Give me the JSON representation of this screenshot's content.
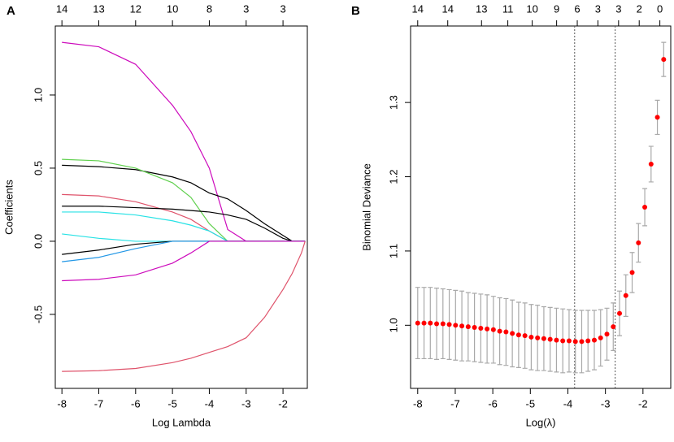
{
  "chart_data": [
    {
      "type": "line",
      "panel": "A",
      "xlabel": "Log Lambda",
      "ylabel": "Coefficients",
      "xlim": [
        -8.18,
        -1.34
      ],
      "ylim": [
        -1.006,
        1.472
      ],
      "xticks": [
        -8,
        -7,
        -6,
        -5,
        -4,
        -3,
        -2
      ],
      "yticks": [
        -0.5,
        {
          "value": 0,
          "label": "0.0"
        },
        0.5,
        {
          "value": 1,
          "label": "1.0"
        }
      ],
      "top_ticks": [
        -8,
        -7,
        -6,
        -5,
        -4,
        -3,
        -2
      ],
      "top_labels": [
        14,
        13,
        12,
        10,
        8,
        3,
        3
      ],
      "x": [
        -8,
        -7,
        -6,
        -5,
        -4.5,
        -4,
        -3.5,
        -3,
        -2.5,
        -2,
        -1.75,
        -1.5,
        -1.4
      ],
      "series": [
        {
          "color": "#CD0BBC",
          "values": [
            1.36,
            1.33,
            1.21,
            0.93,
            0.75,
            0.5,
            0.08,
            0,
            0,
            0,
            0,
            0,
            0
          ]
        },
        {
          "color": "#000000",
          "values": [
            0.52,
            0.51,
            0.49,
            0.44,
            0.4,
            0.33,
            0.29,
            0.21,
            0.12,
            0.04,
            0,
            0,
            0
          ]
        },
        {
          "color": "#61D04F",
          "values": [
            0.56,
            0.55,
            0.5,
            0.4,
            0.3,
            0.12,
            0,
            0,
            0,
            0,
            0,
            0,
            0
          ]
        },
        {
          "color": "#DF536B",
          "values": [
            0.32,
            0.31,
            0.27,
            0.2,
            0.15,
            0.07,
            0,
            0,
            0,
            0,
            0,
            0,
            0
          ]
        },
        {
          "color": "#000000",
          "values": [
            0.24,
            0.24,
            0.23,
            0.22,
            0.21,
            0.2,
            0.18,
            0.15,
            0.09,
            0.02,
            0,
            0,
            0
          ]
        },
        {
          "color": "#28E2E5",
          "values": [
            0.2,
            0.2,
            0.18,
            0.14,
            0.11,
            0.07,
            0,
            0,
            0,
            0,
            0,
            0,
            0
          ]
        },
        {
          "color": "#28E2E5",
          "values": [
            0.05,
            0.02,
            0,
            0,
            0,
            0,
            0,
            0,
            0,
            0,
            0,
            0,
            0
          ]
        },
        {
          "color": "#000000",
          "values": [
            -0.09,
            -0.06,
            -0.02,
            0,
            0,
            0,
            0,
            0,
            0,
            0,
            0,
            0,
            0
          ]
        },
        {
          "color": "#2297E6",
          "values": [
            -0.14,
            -0.11,
            -0.05,
            0,
            0,
            0,
            0,
            0,
            0,
            0,
            0,
            0,
            0
          ]
        },
        {
          "color": "#CD0BBC",
          "values": [
            -0.27,
            -0.26,
            -0.23,
            -0.15,
            -0.08,
            0,
            0,
            0,
            0,
            0,
            0,
            0,
            0
          ]
        },
        {
          "color": "#DF536B",
          "values": [
            -0.89,
            -0.885,
            -0.87,
            -0.83,
            -0.8,
            -0.76,
            -0.72,
            -0.66,
            -0.52,
            -0.33,
            -0.22,
            -0.08,
            0
          ]
        }
      ]
    },
    {
      "type": "errorbar",
      "panel": "B",
      "xlabel": "Log(λ)",
      "ylabel": "Binomial Deviance",
      "xlim": [
        -8.19,
        -1.26
      ],
      "ylim": [
        0.915,
        1.403
      ],
      "xticks": [
        -8,
        -7,
        -6,
        -5,
        -4,
        -3,
        -2
      ],
      "yticks": [
        {
          "value": 1,
          "label": "1.0"
        },
        1.1,
        1.2,
        1.3
      ],
      "top_ticks": [
        -8,
        -7.2,
        -6.3,
        -5.6,
        -4.95,
        -4.3,
        -3.75,
        -3.2,
        -2.65,
        -2.1,
        -1.55
      ],
      "top_labels": [
        14,
        14,
        13,
        11,
        10,
        9,
        6,
        3,
        3,
        2,
        0
      ],
      "vlines": [
        -3.82,
        -2.74
      ],
      "color": "#FF0000",
      "error_color": "#A9A9A9",
      "x": [
        -8,
        -7.832,
        -7.664,
        -7.496,
        -7.328,
        -7.16,
        -6.992,
        -6.824,
        -6.656,
        -6.488,
        -6.32,
        -6.152,
        -5.984,
        -5.816,
        -5.648,
        -5.48,
        -5.312,
        -5.144,
        -4.976,
        -4.808,
        -4.64,
        -4.472,
        -4.304,
        -4.136,
        -3.968,
        -3.8,
        -3.632,
        -3.464,
        -3.296,
        -3.128,
        -2.96,
        -2.792,
        -2.624,
        -2.456,
        -2.288,
        -2.12,
        -1.952,
        -1.784,
        -1.616,
        -1.448
      ],
      "values": [
        1.003,
        1.003,
        1.003,
        1.002,
        1.002,
        1.001,
        1.0,
        0.999,
        0.998,
        0.997,
        0.996,
        0.995,
        0.994,
        0.992,
        0.991,
        0.989,
        0.987,
        0.986,
        0.984,
        0.983,
        0.982,
        0.981,
        0.98,
        0.979,
        0.979,
        0.978,
        0.978,
        0.979,
        0.98,
        0.983,
        0.988,
        0.998,
        1.016,
        1.04,
        1.071,
        1.111,
        1.159,
        1.217,
        1.28,
        1.358
      ],
      "errors": [
        0.048,
        0.048,
        0.048,
        0.048,
        0.047,
        0.047,
        0.047,
        0.047,
        0.046,
        0.046,
        0.046,
        0.046,
        0.045,
        0.045,
        0.045,
        0.045,
        0.044,
        0.044,
        0.044,
        0.044,
        0.043,
        0.043,
        0.043,
        0.043,
        0.042,
        0.042,
        0.042,
        0.041,
        0.04,
        0.038,
        0.035,
        0.032,
        0.03,
        0.028,
        0.027,
        0.026,
        0.025,
        0.024,
        0.023,
        0.023
      ]
    }
  ]
}
